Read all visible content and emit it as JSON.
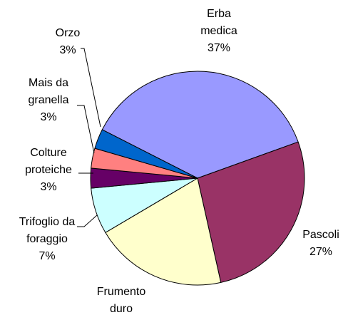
{
  "chart_data": {
    "type": "pie",
    "categories": [
      "Erba medica",
      "Pascoli",
      "Frumento duro",
      "Trifoglio da foraggio",
      "Colture proteiche",
      "Mais da granella",
      "Orzo"
    ],
    "values": [
      37,
      27,
      20,
      7,
      3,
      3,
      3
    ],
    "value_labels": [
      "37%",
      "27%",
      null,
      "7%",
      "3%",
      "3%",
      "3%"
    ],
    "colors": [
      "#9999ff",
      "#993366",
      "#ffffcc",
      "#ccffff",
      "#660066",
      "#ff8080",
      "#0066cc"
    ]
  }
}
